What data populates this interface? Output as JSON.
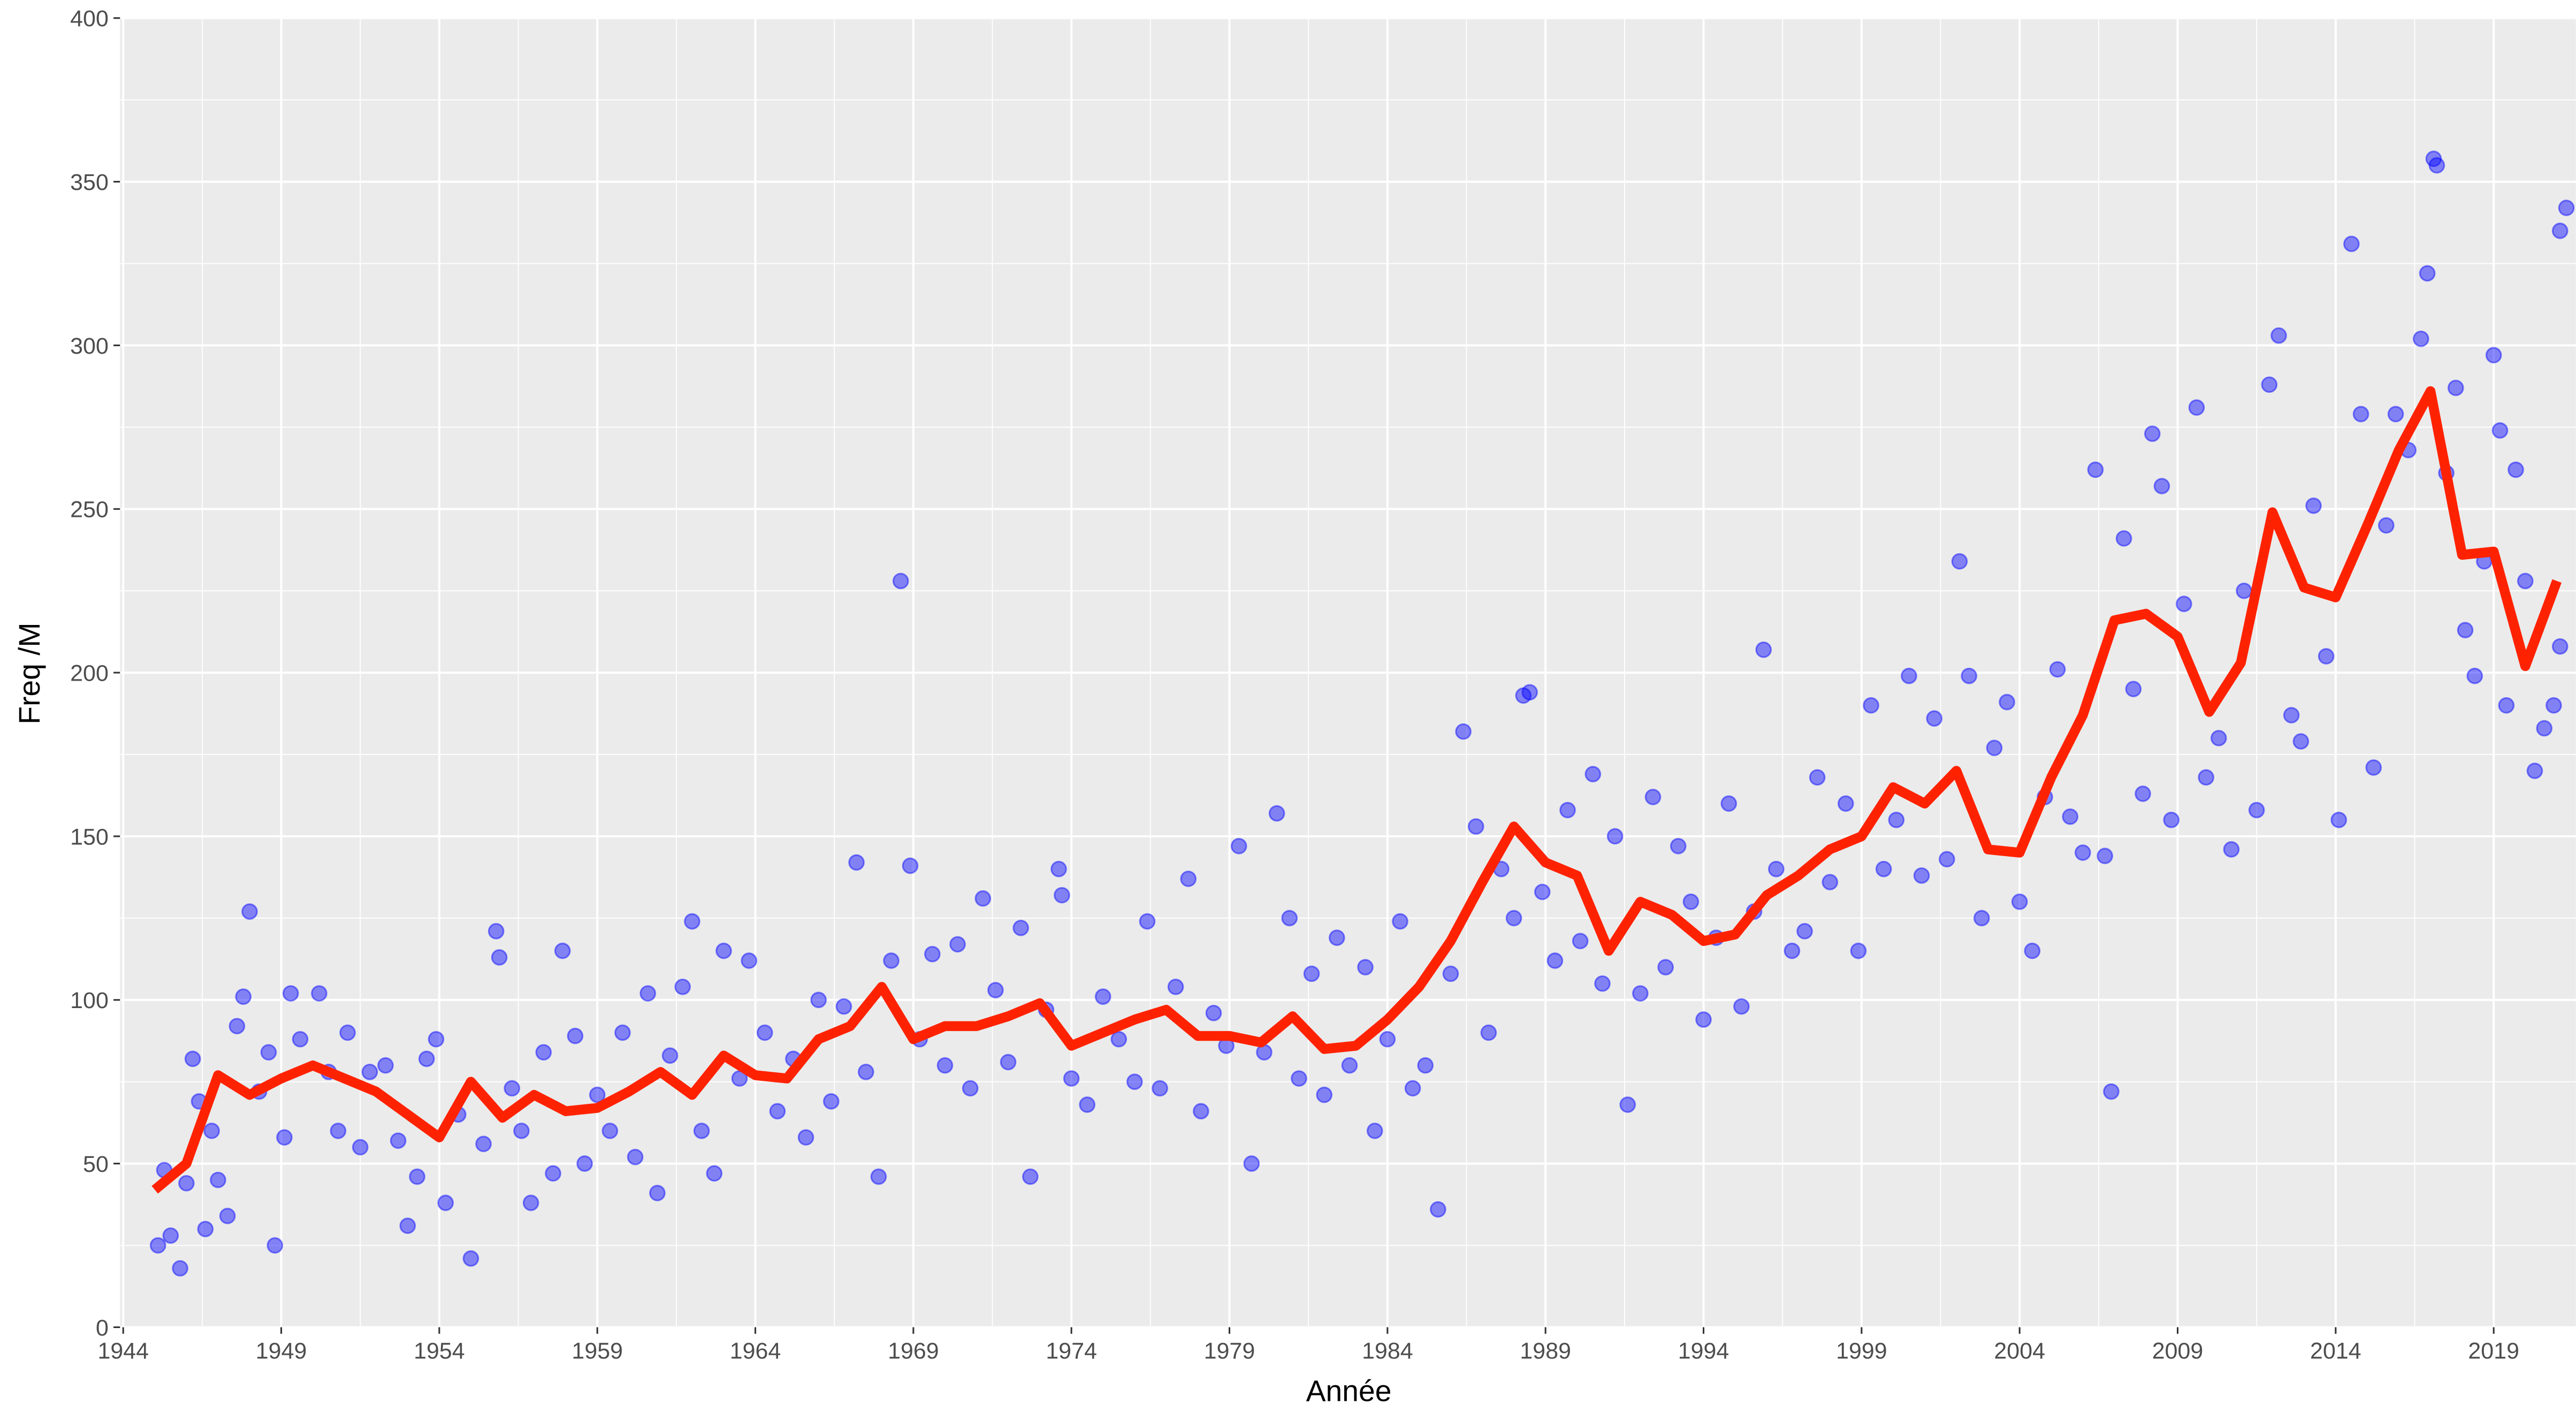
{
  "chart_data": {
    "type": "scatter",
    "xlabel": "Année",
    "ylabel": "Freq /M",
    "xlim": [
      1943.9,
      2021.6
    ],
    "ylim": [
      0,
      400
    ],
    "xticks": [
      1944,
      1949,
      1954,
      1959,
      1964,
      1969,
      1974,
      1979,
      1984,
      1989,
      1994,
      1999,
      2004,
      2009,
      2014,
      2019
    ],
    "yticks": [
      0,
      50,
      100,
      150,
      200,
      250,
      300,
      350,
      400
    ],
    "grid": true,
    "points": {
      "color": "#0000ff",
      "x": [
        1945.1,
        1945.3,
        1945.5,
        1945.8,
        1946.0,
        1946.2,
        1946.4,
        1946.6,
        1946.8,
        1947.0,
        1947.3,
        1947.6,
        1947.8,
        1948.0,
        1948.3,
        1948.6,
        1948.8,
        1949.1,
        1949.3,
        1949.6,
        1950.2,
        1950.5,
        1950.8,
        1951.1,
        1951.5,
        1951.8,
        1952.3,
        1952.7,
        1953.0,
        1953.3,
        1953.6,
        1953.9,
        1954.2,
        1954.6,
        1955.0,
        1955.4,
        1955.8,
        1955.9,
        1956.3,
        1956.6,
        1956.9,
        1957.3,
        1957.6,
        1957.9,
        1958.3,
        1958.6,
        1959.0,
        1959.4,
        1959.8,
        1960.2,
        1960.6,
        1960.9,
        1961.3,
        1961.7,
        1962.0,
        1962.3,
        1962.7,
        1963.0,
        1963.5,
        1963.8,
        1964.3,
        1964.7,
        1965.2,
        1965.6,
        1966.0,
        1966.4,
        1966.8,
        1967.2,
        1967.5,
        1967.9,
        1968.3,
        1968.6,
        1968.9,
        1969.2,
        1969.6,
        1970.0,
        1970.4,
        1970.8,
        1971.2,
        1971.6,
        1972.0,
        1972.4,
        1972.7,
        1973.2,
        1973.6,
        1973.7,
        1974.0,
        1974.5,
        1975.0,
        1975.5,
        1976.0,
        1976.4,
        1976.8,
        1977.3,
        1977.7,
        1978.1,
        1978.5,
        1978.9,
        1979.3,
        1979.7,
        1980.1,
        1980.5,
        1980.9,
        1981.2,
        1981.6,
        1982.0,
        1982.4,
        1982.8,
        1983.3,
        1983.6,
        1984.0,
        1984.4,
        1984.8,
        1985.2,
        1985.6,
        1986.0,
        1986.4,
        1986.8,
        1987.2,
        1987.6,
        1988.0,
        1988.3,
        1988.5,
        1988.9,
        1989.3,
        1989.7,
        1990.1,
        1990.5,
        1990.8,
        1991.2,
        1991.6,
        1992.0,
        1992.4,
        1992.8,
        1993.2,
        1993.6,
        1994.0,
        1994.4,
        1994.8,
        1995.2,
        1995.6,
        1995.9,
        1996.3,
        1996.8,
        1997.2,
        1997.6,
        1998.0,
        1998.5,
        1998.9,
        1999.3,
        1999.7,
        2000.1,
        2000.5,
        2000.9,
        2001.3,
        2001.7,
        2002.1,
        2002.4,
        2002.8,
        2003.2,
        2003.6,
        2004.0,
        2004.4,
        2004.8,
        2005.2,
        2005.6,
        2006.0,
        2006.4,
        2006.7,
        2006.9,
        2007.3,
        2007.6,
        2007.9,
        2008.2,
        2008.5,
        2008.8,
        2009.2,
        2009.6,
        2009.9,
        2010.3,
        2010.7,
        2011.1,
        2011.5,
        2011.9,
        2012.2,
        2012.6,
        2012.9,
        2013.3,
        2013.7,
        2014.1,
        2014.5,
        2014.8,
        2015.2,
        2015.6,
        2015.9,
        2016.3,
        2016.7,
        2016.9,
        2017.1,
        2017.2,
        2017.5,
        2017.8,
        2018.1,
        2018.4,
        2018.7,
        2019.0,
        2019.2,
        2019.4,
        2019.7,
        2020.0,
        2020.3,
        2020.6,
        2020.9,
        2021.1,
        2021.1,
        2021.3
      ],
      "y": [
        25,
        48,
        28,
        18,
        44,
        82,
        69,
        30,
        60,
        45,
        34,
        92,
        101,
        127,
        72,
        84,
        25,
        58,
        102,
        88,
        102,
        78,
        60,
        90,
        55,
        78,
        80,
        57,
        31,
        46,
        82,
        88,
        38,
        65,
        21,
        56,
        121,
        113,
        73,
        60,
        38,
        84,
        47,
        115,
        89,
        50,
        71,
        60,
        90,
        52,
        102,
        41,
        83,
        104,
        124,
        60,
        47,
        115,
        76,
        112,
        90,
        66,
        82,
        58,
        100,
        69,
        98,
        142,
        78,
        46,
        112,
        228,
        141,
        88,
        114,
        80,
        117,
        73,
        131,
        103,
        81,
        122,
        46,
        97,
        140,
        132,
        76,
        68,
        101,
        88,
        75,
        124,
        73,
        104,
        137,
        66,
        96,
        86,
        147,
        50,
        84,
        157,
        125,
        76,
        108,
        71,
        119,
        80,
        110,
        60,
        88,
        124,
        73,
        80,
        36,
        108,
        182,
        153,
        90,
        140,
        125,
        193,
        194,
        133,
        112,
        158,
        118,
        169,
        105,
        150,
        68,
        102,
        162,
        110,
        147,
        130,
        94,
        119,
        160,
        98,
        127,
        207,
        140,
        115,
        121,
        168,
        136,
        160,
        115,
        190,
        140,
        155,
        199,
        138,
        186,
        143,
        234,
        199,
        125,
        177,
        191,
        130,
        115,
        162,
        201,
        156,
        145,
        262,
        144,
        72,
        241,
        195,
        163,
        273,
        257,
        155,
        221,
        281,
        168,
        180,
        146,
        225,
        158,
        288,
        303,
        187,
        179,
        251,
        205,
        155,
        331,
        279,
        171,
        245,
        279,
        268,
        302,
        322,
        357,
        355,
        261,
        287,
        213,
        199,
        234,
        297,
        274,
        190,
        262,
        228,
        170,
        183,
        190,
        208,
        335,
        342
      ]
    },
    "line": {
      "color": "#ff2200",
      "x": [
        1945,
        1946,
        1947,
        1948,
        1949,
        1950,
        1951,
        1952,
        1953,
        1954,
        1955,
        1956,
        1957,
        1958,
        1959,
        1960,
        1961,
        1962,
        1963,
        1964,
        1965,
        1966,
        1967,
        1968,
        1969,
        1970,
        1971,
        1972,
        1973,
        1974,
        1975,
        1976,
        1977,
        1978,
        1979,
        1980,
        1981,
        1982,
        1983,
        1984,
        1985,
        1986,
        1987,
        1988,
        1989,
        1990,
        1991,
        1992,
        1993,
        1994,
        1995,
        1996,
        1997,
        1998,
        1999,
        2000,
        2001,
        2002,
        2003,
        2004,
        2005,
        2006,
        2007,
        2008,
        2009,
        2010,
        2011,
        2012,
        2013,
        2014,
        2015,
        2016,
        2017,
        2018,
        2019,
        2020,
        2021
      ],
      "values": [
        42,
        50,
        77,
        71,
        76,
        80,
        76,
        72,
        65,
        58,
        75,
        64,
        71,
        66,
        67,
        72,
        78,
        71,
        83,
        77,
        76,
        88,
        92,
        104,
        88,
        92,
        92,
        95,
        99,
        86,
        90,
        94,
        97,
        89,
        89,
        87,
        95,
        85,
        86,
        94,
        104,
        118,
        136,
        153,
        142,
        138,
        115,
        130,
        126,
        118,
        120,
        132,
        138,
        146,
        150,
        165,
        160,
        170,
        146,
        145,
        168,
        187,
        216,
        218,
        211,
        188,
        203,
        249,
        226,
        223,
        245,
        268,
        286,
        236,
        237,
        202,
        228
      ]
    }
  }
}
